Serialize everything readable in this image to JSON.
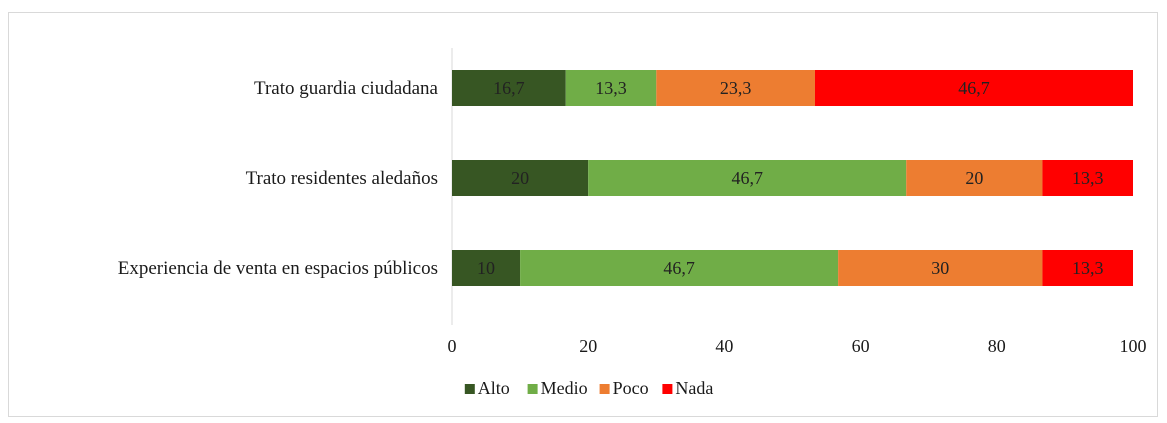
{
  "chart_data": {
    "type": "bar",
    "orientation": "horizontal",
    "stacked": true,
    "categories": [
      "Trato guardia ciudadana",
      "Trato residentes aledaños",
      "Experiencia de venta en espacios públicos"
    ],
    "series": [
      {
        "name": "Alto",
        "color": "#375623",
        "values": [
          16.7,
          20,
          10
        ],
        "labels": [
          "16,7",
          "20",
          "10"
        ]
      },
      {
        "name": "Medio",
        "color": "#70ad47",
        "values": [
          13.3,
          46.7,
          46.7
        ],
        "labels": [
          "13,3",
          "46,7",
          "46,7"
        ]
      },
      {
        "name": "Poco",
        "color": "#ed7d31",
        "values": [
          23.3,
          20,
          30
        ],
        "labels": [
          "23,3",
          "20",
          "30"
        ]
      },
      {
        "name": "Nada",
        "color": "#ff0000",
        "values": [
          46.7,
          13.3,
          13.3
        ],
        "labels": [
          "46,7",
          "13,3",
          "13,3"
        ]
      }
    ],
    "xlim": [
      0,
      100
    ],
    "xticks": [
      0,
      20,
      40,
      60,
      80,
      100
    ],
    "grid": false,
    "legend_position": "bottom"
  }
}
